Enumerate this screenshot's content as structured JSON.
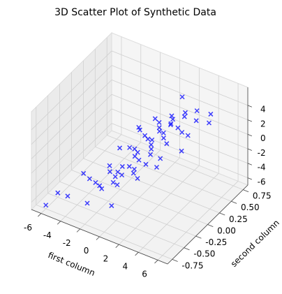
{
  "chart_data": {
    "type": "scatter3d",
    "title": "3D Scatter Plot of Synthetic Data",
    "xlabel": "first column",
    "ylabel": "second column",
    "color": "#0000ff",
    "marker": "x",
    "grid": true,
    "xlim": [
      -7,
      7
    ],
    "xticks": [
      -6,
      -4,
      -2,
      0,
      2,
      4,
      6
    ],
    "ylim": [
      -0.85,
      0.85
    ],
    "yticks": [
      -0.75,
      {
        "value": -0.5,
        "label": "-0.50"
      },
      -0.25,
      {
        "value": 0,
        "label": "0.00"
      },
      0.25,
      {
        "value": 0.5,
        "label": "0.50"
      },
      0.75
    ],
    "zlim": [
      -7,
      6.5
    ],
    "zticks": [
      -6,
      -4,
      -2,
      0,
      2,
      4
    ],
    "x": [
      -5.5,
      -4.8,
      -4.0,
      -3.5,
      -3.2,
      -3.0,
      -2.6,
      -2.4,
      -2.1,
      -2.0,
      -1.8,
      -1.6,
      -1.4,
      -1.2,
      -1.0,
      -0.9,
      -0.8,
      -0.6,
      -0.5,
      -0.4,
      -0.3,
      -0.2,
      -0.1,
      0.0,
      0.1,
      0.2,
      0.3,
      0.4,
      0.5,
      0.6,
      0.7,
      0.8,
      0.9,
      1.0,
      1.1,
      1.2,
      1.3,
      1.4,
      1.5,
      1.6,
      1.7,
      1.8,
      2.0,
      2.1,
      2.3,
      2.5,
      2.7,
      2.9,
      3.1,
      3.4,
      3.7,
      4.0,
      4.4,
      4.8,
      5.2,
      -1.5,
      -0.7,
      0.5,
      1.0,
      -2.5,
      -6.0
    ],
    "y": [
      -0.6,
      -0.2,
      -0.7,
      0.3,
      -0.4,
      0.6,
      -0.1,
      0.5,
      -0.5,
      0.2,
      0.7,
      -0.3,
      0.4,
      -0.6,
      0.1,
      0.6,
      -0.2,
      0.3,
      -0.7,
      0.5,
      -0.4,
      0.0,
      0.7,
      -0.1,
      0.4,
      -0.6,
      0.2,
      -0.3,
      0.6,
      -0.5,
      0.1,
      0.5,
      -0.2,
      0.3,
      -0.7,
      0.0,
      0.7,
      -0.4,
      0.2,
      -0.1,
      0.6,
      -0.5,
      0.4,
      -0.3,
      0.1,
      0.7,
      -0.6,
      0.3,
      -0.2,
      0.5,
      -0.4,
      0.2,
      0.6,
      -0.1,
      0.4,
      -0.8,
      0.8,
      0.8,
      -0.8,
      0.0,
      -0.75
    ],
    "z": [
      -5.5,
      -5.0,
      -4.5,
      -4.0,
      -3.6,
      -2.8,
      -3.4,
      -2.2,
      -2.9,
      -2.5,
      -1.6,
      -2.4,
      -1.8,
      -2.2,
      -1.5,
      -1.0,
      -1.9,
      -1.2,
      -1.6,
      -0.8,
      -1.1,
      -0.9,
      -0.3,
      -0.7,
      -0.4,
      -1.0,
      -0.2,
      -0.6,
      0.2,
      -0.4,
      0.0,
      0.4,
      -0.1,
      0.5,
      -0.2,
      0.3,
      0.9,
      0.2,
      0.7,
      0.4,
      1.2,
      0.5,
      1.1,
      0.6,
      1.0,
      1.8,
      0.9,
      1.6,
      1.3,
      2.2,
      1.7,
      2.4,
      3.0,
      2.6,
      3.5,
      -3.5,
      -2.5,
      2.0,
      -2.5,
      -5.5,
      -6.5
    ]
  }
}
